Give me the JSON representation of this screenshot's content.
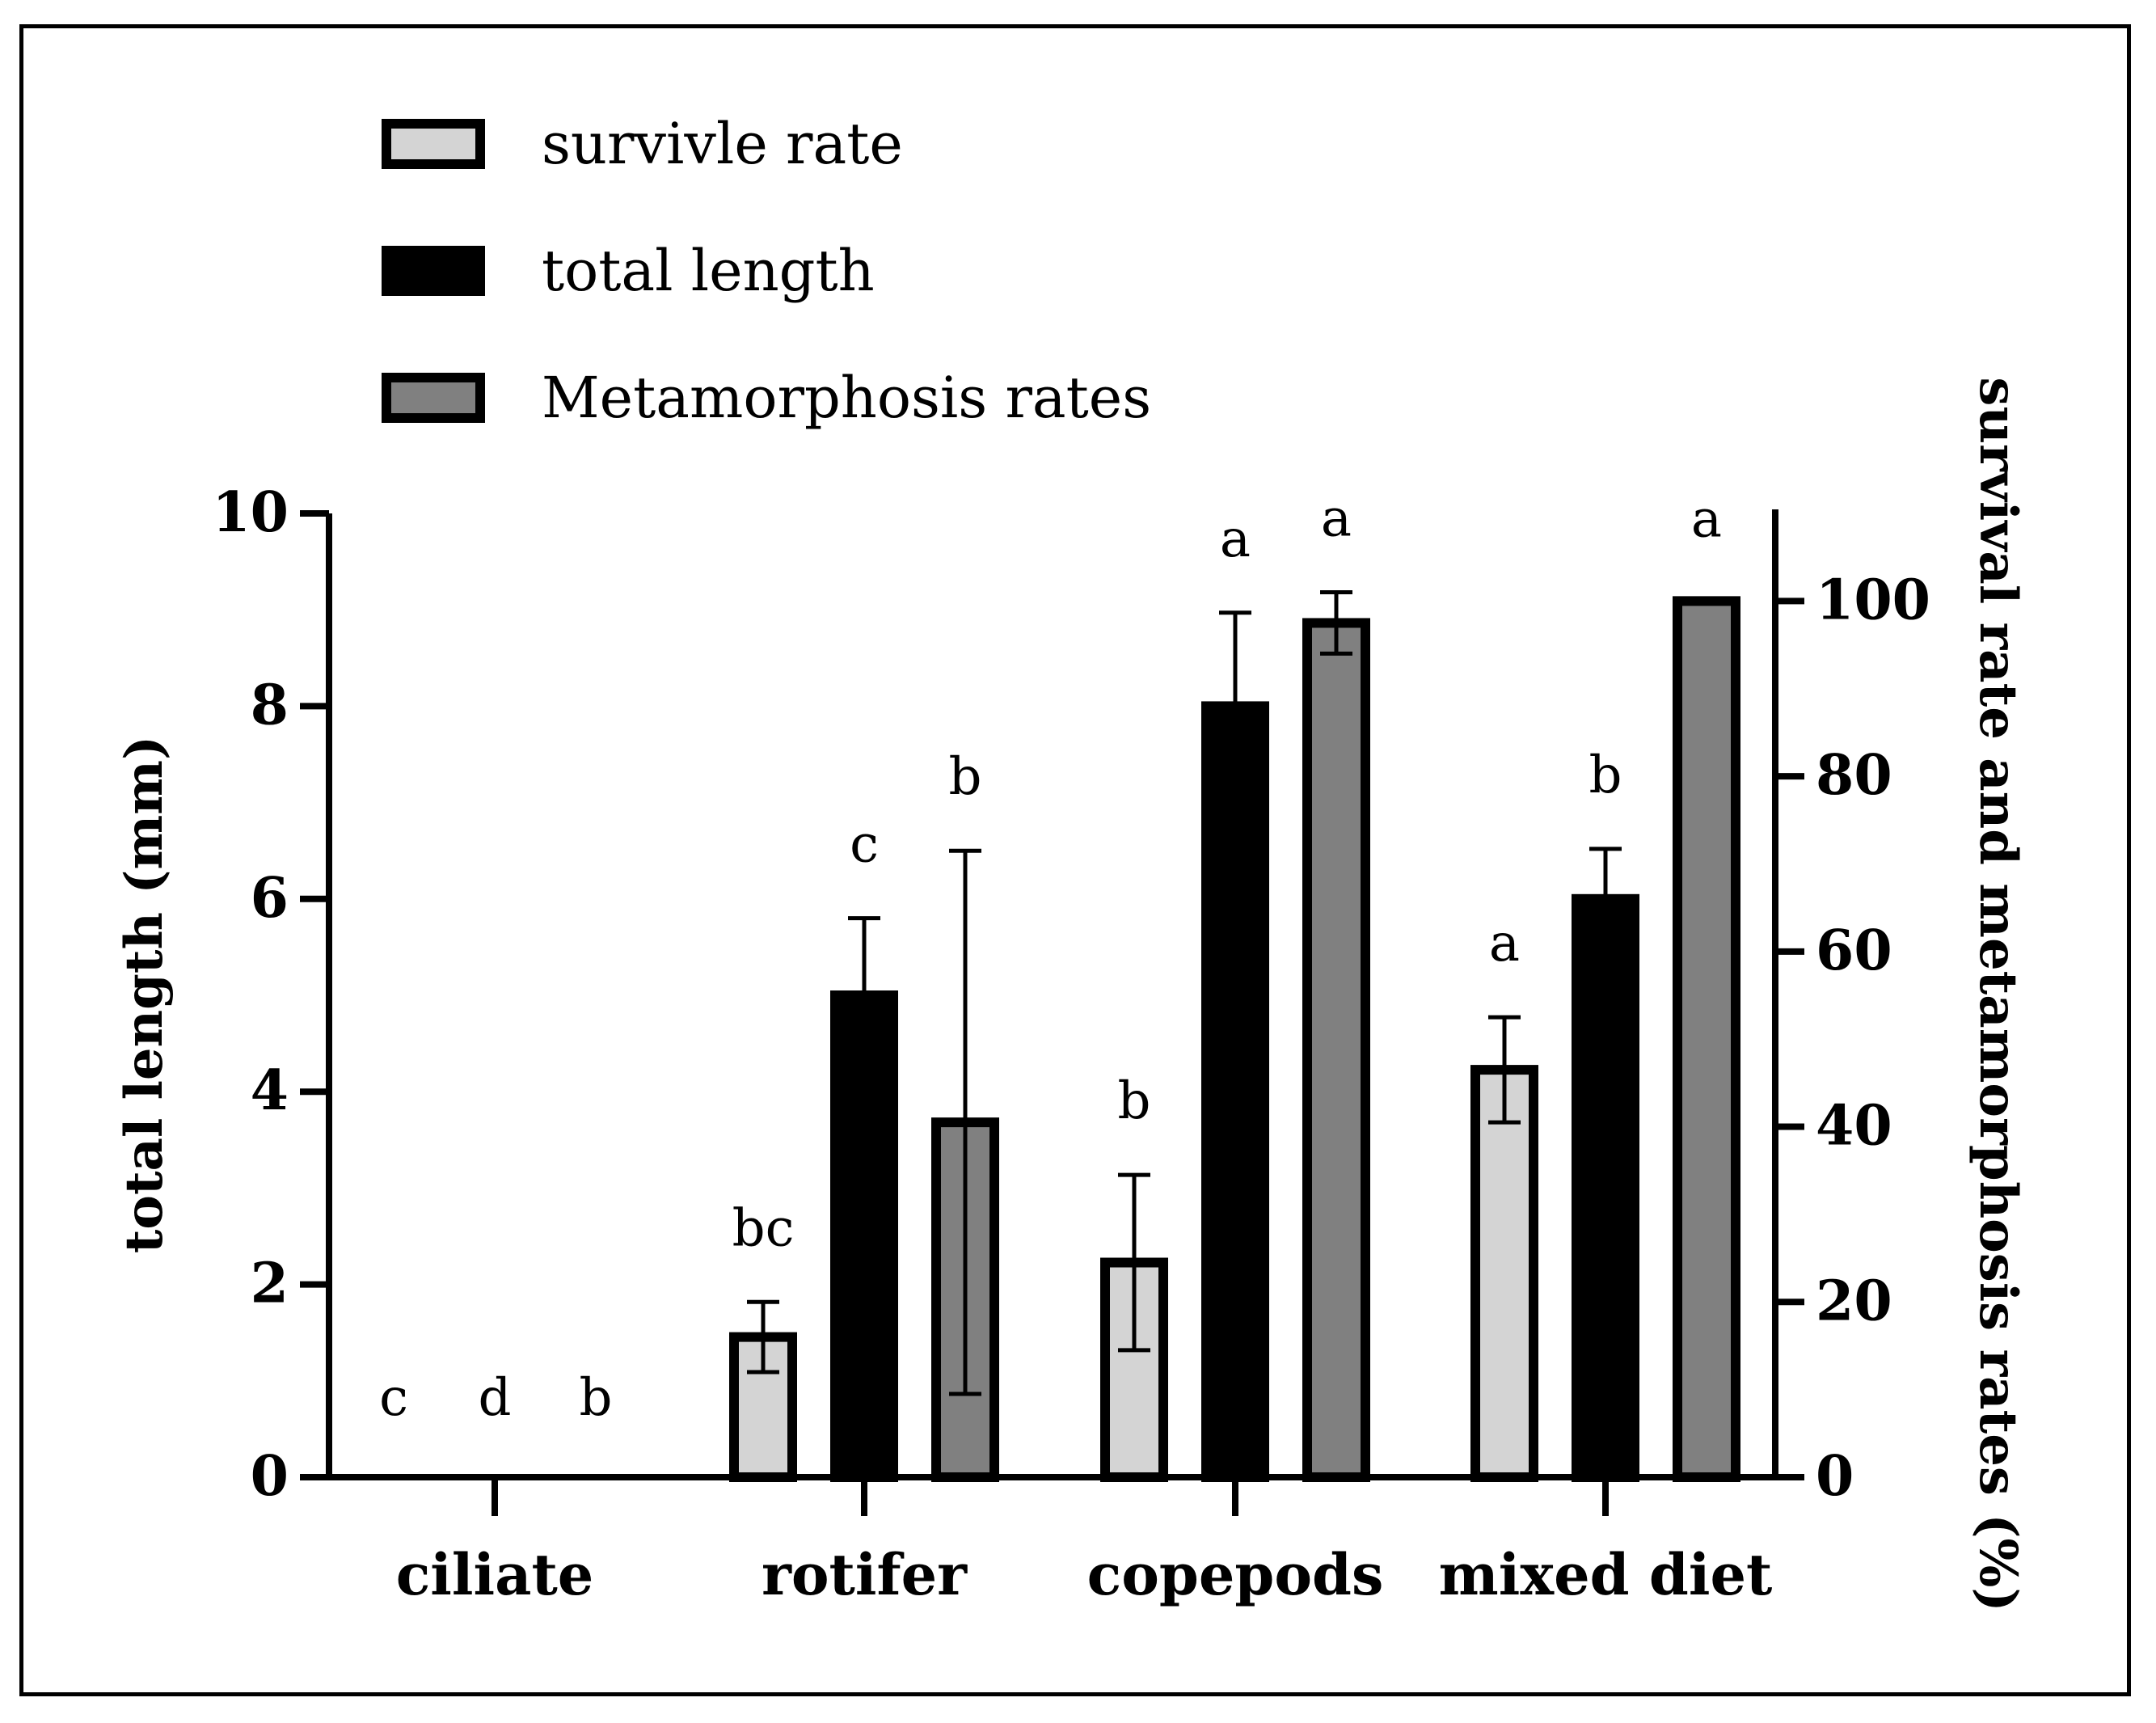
{
  "chart_data": {
    "type": "bar",
    "categories": [
      "ciliate",
      "rotifer",
      "copepods",
      "mixed diet"
    ],
    "series": [
      {
        "name": "survivle rate",
        "axis": "right",
        "color": "#d4d4d4",
        "values": [
          0,
          16,
          24.5,
          46.5
        ],
        "errors": [
          0,
          4,
          10,
          6
        ],
        "letters": [
          "c",
          "bc",
          "b",
          "a"
        ]
      },
      {
        "name": "total length",
        "axis": "left",
        "color": "#000000",
        "values": [
          0,
          5.0,
          8.0,
          6.0
        ],
        "errors": [
          0,
          0.8,
          0.97,
          0.52
        ],
        "letters": [
          "d",
          "c",
          "a",
          "b"
        ]
      },
      {
        "name": "Metamorphosis rates",
        "axis": "right",
        "color": "#808080",
        "values": [
          0,
          40.5,
          97.5,
          100
        ],
        "errors": [
          0,
          31,
          3.5,
          0
        ],
        "letters": [
          "b",
          "b",
          "a",
          "a"
        ]
      }
    ],
    "y_left": {
      "label": "total length (mm)",
      "min": 0,
      "max": 10,
      "ticks": [
        0,
        2,
        4,
        6,
        8,
        10
      ]
    },
    "y_right": {
      "label": "survival rate and metamorphosis rates (%)",
      "min": 0,
      "max": 110,
      "ticks": [
        0,
        20,
        40,
        60,
        80,
        100
      ]
    },
    "legend_position": "top-left",
    "grid": false
  }
}
